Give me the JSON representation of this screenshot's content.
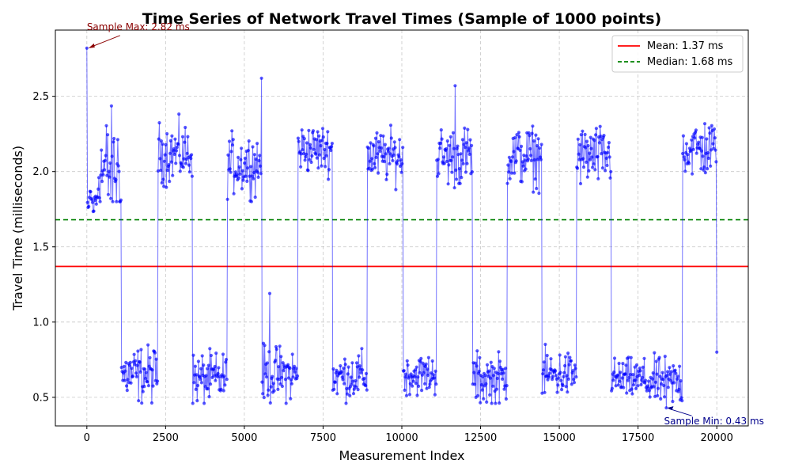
{
  "chart_data": {
    "type": "line",
    "title": "Time Series of Network Travel Times (Sample of 1000 points)",
    "xlabel": "Measurement Index",
    "ylabel": "Travel Time (milliseconds)",
    "xlim": [
      -1000,
      21000
    ],
    "ylim": [
      0.31,
      2.94
    ],
    "xticks": [
      0,
      2500,
      5000,
      7500,
      10000,
      12500,
      15000,
      17500,
      20000
    ],
    "xtick_labels": [
      "0",
      "2500",
      "5000",
      "7500",
      "10000",
      "12500",
      "15000",
      "17500",
      "20000"
    ],
    "yticks": [
      0.5,
      1.0,
      1.5,
      2.0,
      2.5
    ],
    "ytick_labels": [
      "0.5",
      "1.0",
      "1.5",
      "2.0",
      "2.5"
    ],
    "grid": true,
    "legend_position": "top-right",
    "series": {
      "points": {
        "color": "#0000ff",
        "count": 1000,
        "x_start": 0,
        "x_end": 20000,
        "segments": [
          {
            "x_start": 0,
            "x_end": 1100,
            "level": "high",
            "center": 2.0,
            "spread": 0.3
          },
          {
            "x_start": 1100,
            "x_end": 2250,
            "level": "low",
            "center": 0.65,
            "spread": 0.14
          },
          {
            "x_start": 2250,
            "x_end": 3350,
            "level": "high",
            "center": 2.12,
            "spread": 0.15
          },
          {
            "x_start": 3350,
            "x_end": 4450,
            "level": "low",
            "center": 0.62,
            "spread": 0.13
          },
          {
            "x_start": 4450,
            "x_end": 5550,
            "level": "high",
            "center": 2.05,
            "spread": 0.15
          },
          {
            "x_start": 5550,
            "x_end": 6700,
            "level": "low",
            "center": 0.65,
            "spread": 0.14
          },
          {
            "x_start": 6700,
            "x_end": 7800,
            "level": "high",
            "center": 2.15,
            "spread": 0.12
          },
          {
            "x_start": 7800,
            "x_end": 8900,
            "level": "low",
            "center": 0.64,
            "spread": 0.12
          },
          {
            "x_start": 8900,
            "x_end": 10050,
            "level": "high",
            "center": 2.1,
            "spread": 0.13
          },
          {
            "x_start": 10050,
            "x_end": 11100,
            "level": "low",
            "center": 0.65,
            "spread": 0.1
          },
          {
            "x_start": 11100,
            "x_end": 12250,
            "level": "high",
            "center": 2.1,
            "spread": 0.15
          },
          {
            "x_start": 12250,
            "x_end": 13350,
            "level": "low",
            "center": 0.62,
            "spread": 0.13
          },
          {
            "x_start": 13350,
            "x_end": 14450,
            "level": "high",
            "center": 2.1,
            "spread": 0.15
          },
          {
            "x_start": 14450,
            "x_end": 15550,
            "level": "low",
            "center": 0.65,
            "spread": 0.12
          },
          {
            "x_start": 15550,
            "x_end": 16650,
            "level": "high",
            "center": 2.1,
            "spread": 0.15
          },
          {
            "x_start": 16650,
            "x_end": 17750,
            "level": "low",
            "center": 0.62,
            "spread": 0.1
          },
          {
            "x_start": 17750,
            "x_end": 18900,
            "level": "low",
            "center": 0.6,
            "spread": 0.12
          },
          {
            "x_start": 18900,
            "x_end": 20000,
            "level": "high",
            "center": 2.15,
            "spread": 0.15
          }
        ],
        "spikes": [
          {
            "x": 0,
            "y": 2.82
          },
          {
            "x": 5550,
            "y": 2.62
          },
          {
            "x": 5800,
            "y": 1.19
          },
          {
            "x": 11700,
            "y": 2.57
          },
          {
            "x": 18400,
            "y": 0.43
          },
          {
            "x": 20000,
            "y": 0.8
          }
        ]
      },
      "mean": {
        "value": 1.37,
        "color": "#ff0000",
        "style": "solid",
        "legend": "Mean: 1.37 ms"
      },
      "median": {
        "value": 1.68,
        "color": "#008000",
        "style": "dashed",
        "legend": "Median: 1.68 ms"
      }
    },
    "annotations": [
      {
        "text": "Sample Max: 2.82 ms",
        "x": 0,
        "y": 2.82,
        "color": "#8b0000"
      },
      {
        "text": "Sample Min: 0.43 ms",
        "x": 18400,
        "y": 0.43,
        "color": "#00008b"
      }
    ]
  }
}
